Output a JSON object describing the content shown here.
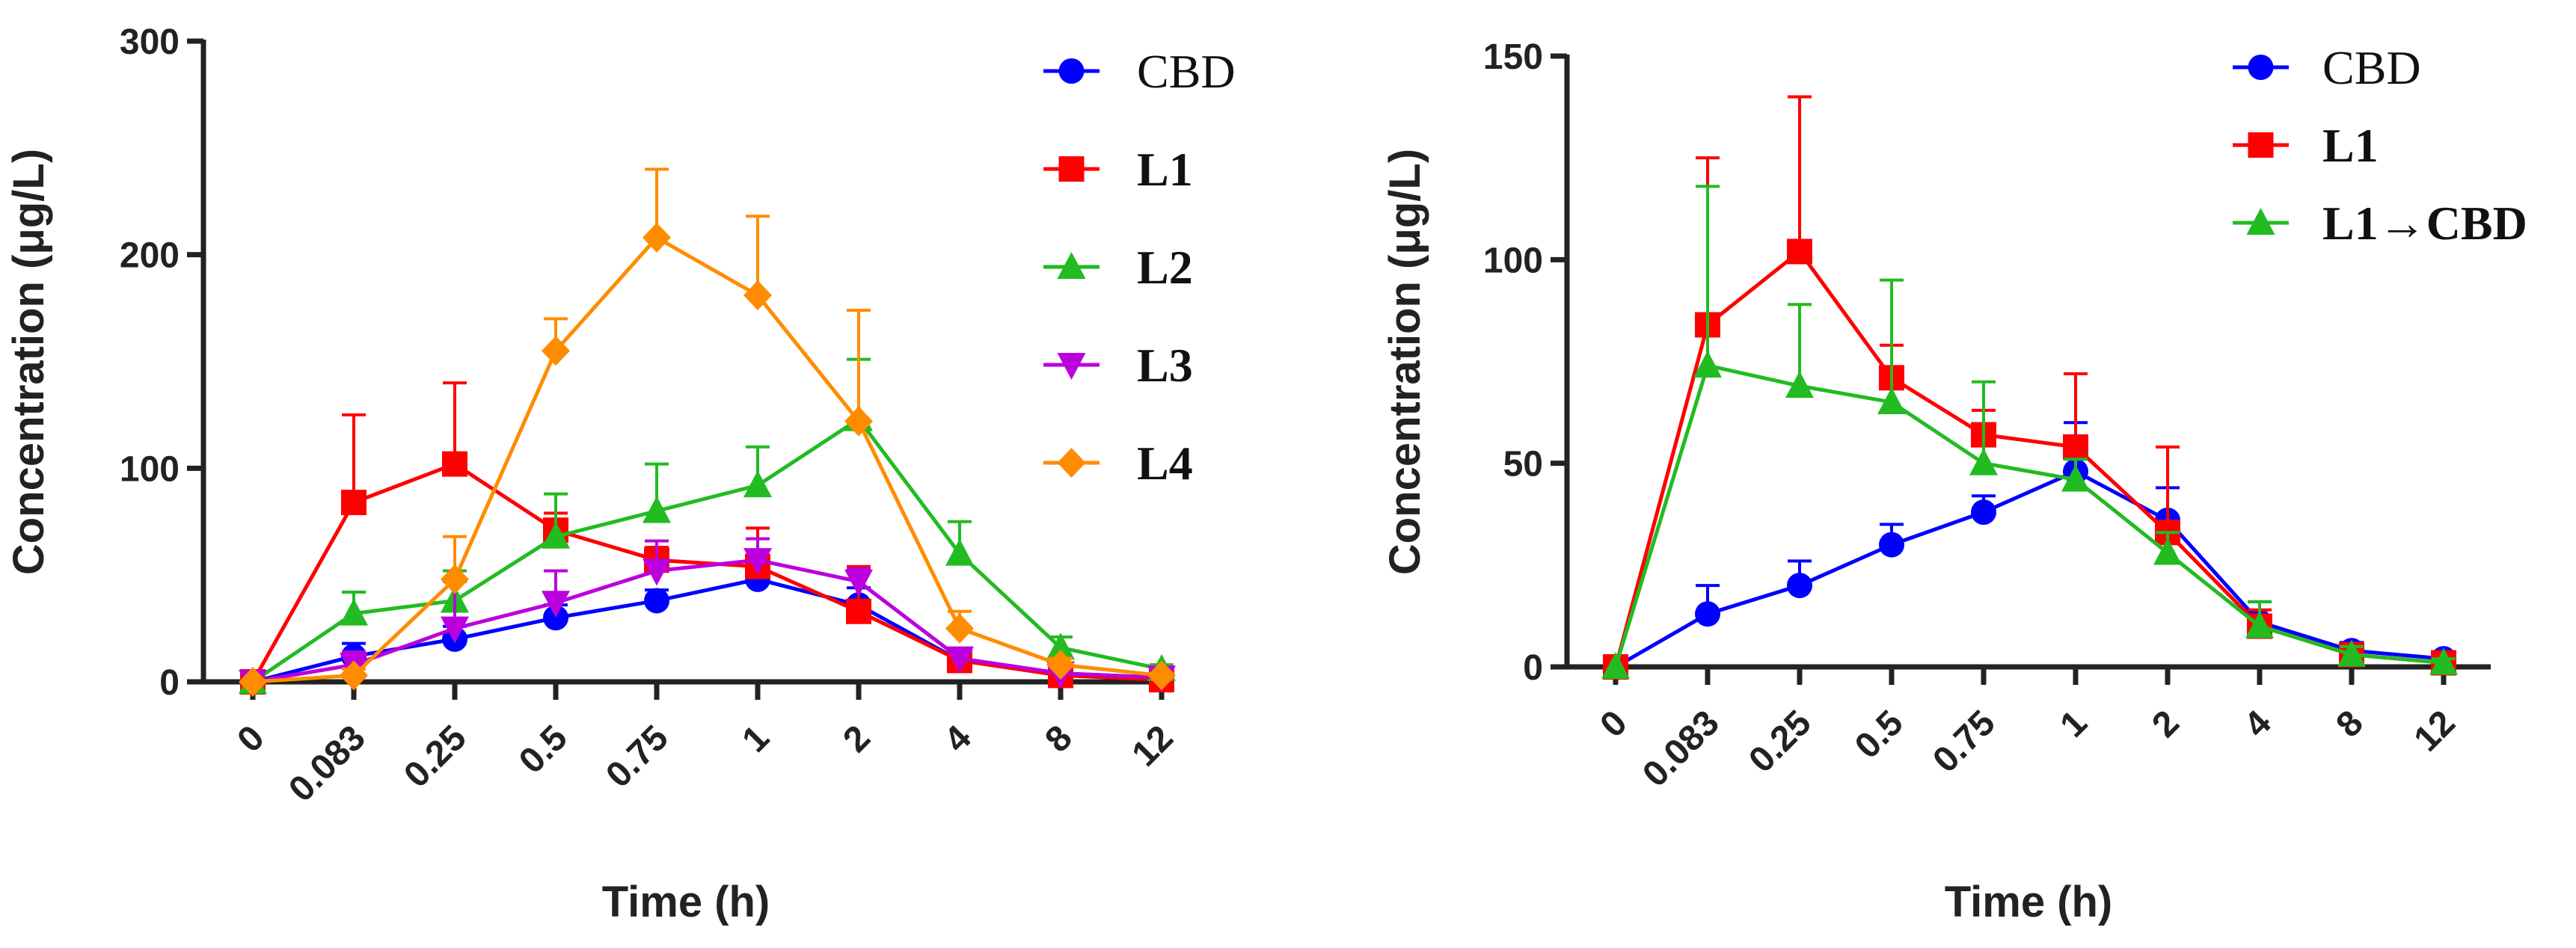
{
  "chart_data": [
    {
      "type": "line",
      "title": "",
      "xlabel": "Time (h)",
      "ylabel": "Concentration (μg/L)",
      "categories": [
        "0",
        "0.083",
        "0.25",
        "0.5",
        "0.75",
        "1",
        "2",
        "4",
        "8",
        "12"
      ],
      "ylim": [
        0,
        300
      ],
      "yticks": [
        "0",
        "100",
        "200",
        "300"
      ],
      "legend_position": "right",
      "series": [
        {
          "name": "CBD",
          "color": "#0000ff",
          "marker": "circle",
          "bold": false,
          "values": [
            0,
            12,
            20,
            30,
            38,
            48,
            36,
            10,
            4,
            2
          ],
          "errors": [
            0,
            6,
            6,
            6,
            5,
            8,
            8,
            4,
            2,
            1
          ]
        },
        {
          "name": "L1",
          "color": "#ff0000",
          "marker": "square",
          "bold": true,
          "values": [
            0,
            84,
            102,
            71,
            57,
            54,
            33,
            10,
            3,
            1
          ],
          "errors": [
            0,
            41,
            38,
            8,
            6,
            18,
            21,
            4,
            2,
            1
          ]
        },
        {
          "name": "L2",
          "color": "#22bb22",
          "marker": "triangle-up",
          "bold": true,
          "values": [
            0,
            32,
            38,
            68,
            80,
            92,
            123,
            60,
            16,
            6
          ],
          "errors": [
            0,
            10,
            14,
            20,
            22,
            18,
            28,
            15,
            5,
            2
          ]
        },
        {
          "name": "L3",
          "color": "#bb00dd",
          "marker": "triangle-down",
          "bold": true,
          "values": [
            0,
            8,
            25,
            37,
            52,
            57,
            47,
            11,
            4,
            2
          ],
          "errors": [
            0,
            6,
            22,
            15,
            14,
            10,
            6,
            3,
            2,
            1
          ]
        },
        {
          "name": "L4",
          "color": "#ff8c00",
          "marker": "diamond",
          "bold": true,
          "values": [
            0,
            3,
            48,
            155,
            208,
            181,
            122,
            25,
            8,
            3
          ],
          "errors": [
            0,
            3,
            20,
            15,
            32,
            37,
            52,
            8,
            3,
            1
          ]
        }
      ]
    },
    {
      "type": "line",
      "title": "",
      "xlabel": "Time (h)",
      "ylabel": "Concentration (μg/L)",
      "categories": [
        "0",
        "0.083",
        "0.25",
        "0.5",
        "0.75",
        "1",
        "2",
        "4",
        "8",
        "12"
      ],
      "ylim": [
        0,
        150
      ],
      "yticks": [
        "0",
        "50",
        "100",
        "150"
      ],
      "legend_position": "top-right",
      "series": [
        {
          "name": "CBD",
          "color": "#0000ff",
          "marker": "circle",
          "bold": false,
          "values": [
            0,
            13,
            20,
            30,
            38,
            48,
            36,
            11,
            4,
            2
          ],
          "errors": [
            0,
            7,
            6,
            5,
            4,
            12,
            8,
            5,
            2,
            1
          ]
        },
        {
          "name": "L1",
          "color": "#ff0000",
          "marker": "square",
          "bold": true,
          "values": [
            0,
            84,
            102,
            71,
            57,
            54,
            33,
            10,
            3,
            1
          ],
          "errors": [
            0,
            41,
            38,
            8,
            6,
            18,
            21,
            4,
            2,
            1
          ]
        },
        {
          "name": "L1→CBD",
          "color": "#22bb22",
          "marker": "triangle-up",
          "bold": true,
          "values": [
            0,
            74,
            69,
            65,
            50,
            46,
            28,
            10,
            3,
            1
          ],
          "errors": [
            0,
            44,
            20,
            30,
            20,
            5,
            5,
            6,
            2,
            1
          ]
        }
      ]
    }
  ]
}
